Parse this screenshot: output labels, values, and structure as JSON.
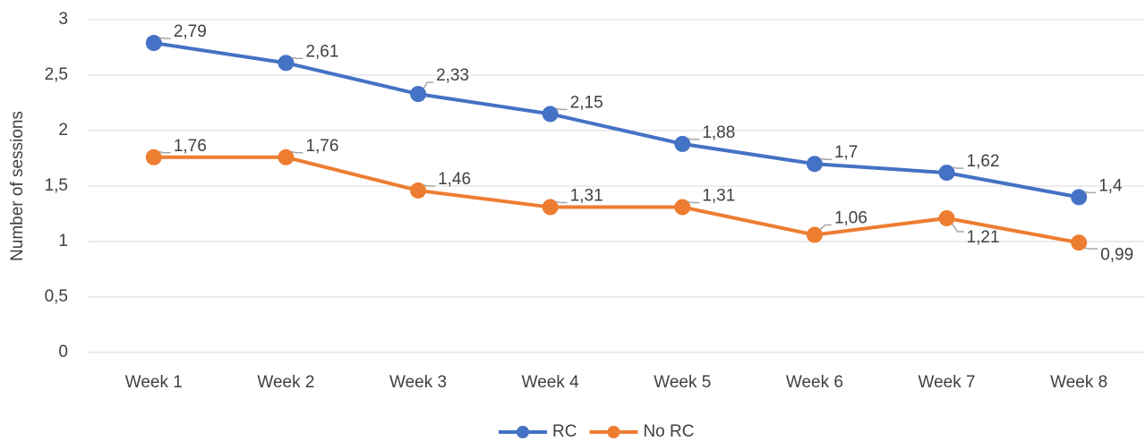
{
  "chart_data": {
    "type": "line",
    "y_label": "Number of sessions",
    "categories": [
      "Week 1",
      "Week 2",
      "Week 3",
      "Week 4",
      "Week 5",
      "Week 6",
      "Week 7",
      "Week 8"
    ],
    "series": [
      {
        "name": "RC",
        "color": "#4472c4",
        "values": [
          2.79,
          2.61,
          2.33,
          2.15,
          1.88,
          1.7,
          1.62,
          1.4
        ],
        "value_labels": [
          "2,79",
          "2,61",
          "2,33",
          "2,15",
          "1,88",
          "1,7",
          "1,62",
          "1,4"
        ]
      },
      {
        "name": "No RC",
        "color": "#ed7d31",
        "values": [
          1.76,
          1.76,
          1.46,
          1.31,
          1.31,
          1.06,
          1.21,
          0.99
        ],
        "value_labels": [
          "1,76",
          "1,76",
          "1,46",
          "1,31",
          "1,31",
          "1,06",
          "1,21",
          "0,99"
        ]
      }
    ],
    "ylim": [
      0,
      3
    ],
    "yticks": [
      0,
      {
        "value": 0.5,
        "label": "0,5"
      },
      1,
      {
        "value": 1.5,
        "label": "1,5"
      },
      2,
      {
        "value": 2.5,
        "label": "2,5"
      },
      3
    ],
    "grid": true,
    "legend": "bottom"
  }
}
